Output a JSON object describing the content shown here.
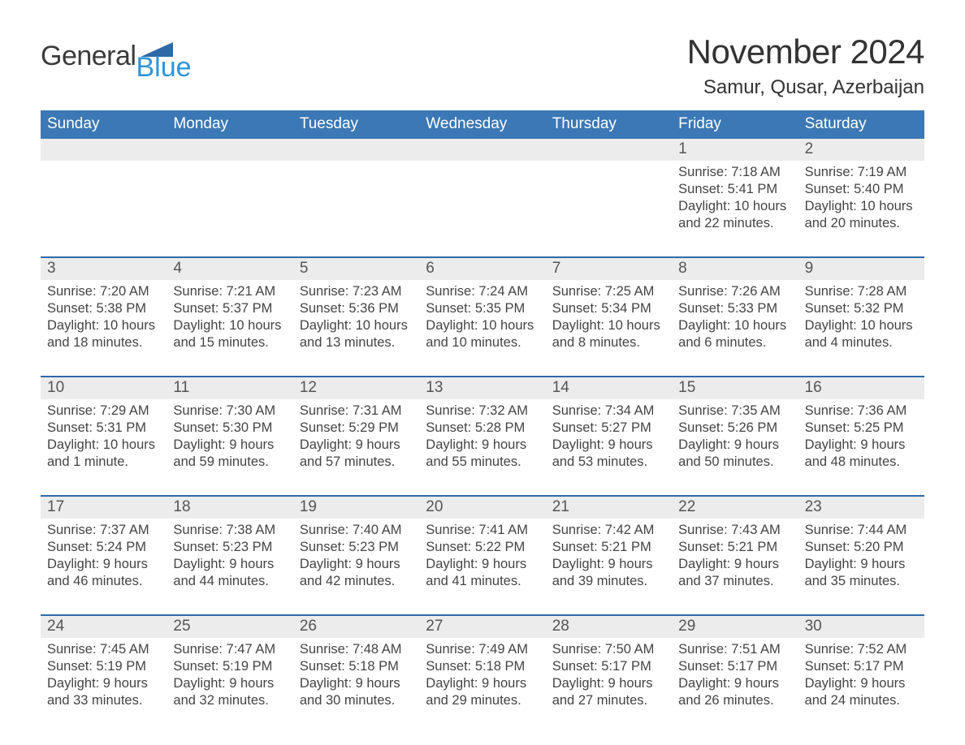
{
  "brand": {
    "word1": "General",
    "word2": "Blue"
  },
  "title": "November 2024",
  "location": "Samur, Qusar, Azerbaijan",
  "colors": {
    "header_blue": "#3b78b5",
    "accent_blue": "#2f6aa8",
    "logo_blue": "#2f94d8",
    "day_bg": "#ececec",
    "background": "#ffffff",
    "text": "#333333"
  },
  "daysOfWeek": [
    "Sunday",
    "Monday",
    "Tuesday",
    "Wednesday",
    "Thursday",
    "Friday",
    "Saturday"
  ],
  "weeks": [
    [
      {
        "num": "",
        "lines": []
      },
      {
        "num": "",
        "lines": []
      },
      {
        "num": "",
        "lines": []
      },
      {
        "num": "",
        "lines": []
      },
      {
        "num": "",
        "lines": []
      },
      {
        "num": "1",
        "lines": [
          "Sunrise: 7:18 AM",
          "Sunset: 5:41 PM",
          "Daylight: 10 hours",
          "and 22 minutes."
        ]
      },
      {
        "num": "2",
        "lines": [
          "Sunrise: 7:19 AM",
          "Sunset: 5:40 PM",
          "Daylight: 10 hours",
          "and 20 minutes."
        ]
      }
    ],
    [
      {
        "num": "3",
        "lines": [
          "Sunrise: 7:20 AM",
          "Sunset: 5:38 PM",
          "Daylight: 10 hours",
          "and 18 minutes."
        ]
      },
      {
        "num": "4",
        "lines": [
          "Sunrise: 7:21 AM",
          "Sunset: 5:37 PM",
          "Daylight: 10 hours",
          "and 15 minutes."
        ]
      },
      {
        "num": "5",
        "lines": [
          "Sunrise: 7:23 AM",
          "Sunset: 5:36 PM",
          "Daylight: 10 hours",
          "and 13 minutes."
        ]
      },
      {
        "num": "6",
        "lines": [
          "Sunrise: 7:24 AM",
          "Sunset: 5:35 PM",
          "Daylight: 10 hours",
          "and 10 minutes."
        ]
      },
      {
        "num": "7",
        "lines": [
          "Sunrise: 7:25 AM",
          "Sunset: 5:34 PM",
          "Daylight: 10 hours",
          "and 8 minutes."
        ]
      },
      {
        "num": "8",
        "lines": [
          "Sunrise: 7:26 AM",
          "Sunset: 5:33 PM",
          "Daylight: 10 hours",
          "and 6 minutes."
        ]
      },
      {
        "num": "9",
        "lines": [
          "Sunrise: 7:28 AM",
          "Sunset: 5:32 PM",
          "Daylight: 10 hours",
          "and 4 minutes."
        ]
      }
    ],
    [
      {
        "num": "10",
        "lines": [
          "Sunrise: 7:29 AM",
          "Sunset: 5:31 PM",
          "Daylight: 10 hours",
          "and 1 minute."
        ]
      },
      {
        "num": "11",
        "lines": [
          "Sunrise: 7:30 AM",
          "Sunset: 5:30 PM",
          "Daylight: 9 hours",
          "and 59 minutes."
        ]
      },
      {
        "num": "12",
        "lines": [
          "Sunrise: 7:31 AM",
          "Sunset: 5:29 PM",
          "Daylight: 9 hours",
          "and 57 minutes."
        ]
      },
      {
        "num": "13",
        "lines": [
          "Sunrise: 7:32 AM",
          "Sunset: 5:28 PM",
          "Daylight: 9 hours",
          "and 55 minutes."
        ]
      },
      {
        "num": "14",
        "lines": [
          "Sunrise: 7:34 AM",
          "Sunset: 5:27 PM",
          "Daylight: 9 hours",
          "and 53 minutes."
        ]
      },
      {
        "num": "15",
        "lines": [
          "Sunrise: 7:35 AM",
          "Sunset: 5:26 PM",
          "Daylight: 9 hours",
          "and 50 minutes."
        ]
      },
      {
        "num": "16",
        "lines": [
          "Sunrise: 7:36 AM",
          "Sunset: 5:25 PM",
          "Daylight: 9 hours",
          "and 48 minutes."
        ]
      }
    ],
    [
      {
        "num": "17",
        "lines": [
          "Sunrise: 7:37 AM",
          "Sunset: 5:24 PM",
          "Daylight: 9 hours",
          "and 46 minutes."
        ]
      },
      {
        "num": "18",
        "lines": [
          "Sunrise: 7:38 AM",
          "Sunset: 5:23 PM",
          "Daylight: 9 hours",
          "and 44 minutes."
        ]
      },
      {
        "num": "19",
        "lines": [
          "Sunrise: 7:40 AM",
          "Sunset: 5:23 PM",
          "Daylight: 9 hours",
          "and 42 minutes."
        ]
      },
      {
        "num": "20",
        "lines": [
          "Sunrise: 7:41 AM",
          "Sunset: 5:22 PM",
          "Daylight: 9 hours",
          "and 41 minutes."
        ]
      },
      {
        "num": "21",
        "lines": [
          "Sunrise: 7:42 AM",
          "Sunset: 5:21 PM",
          "Daylight: 9 hours",
          "and 39 minutes."
        ]
      },
      {
        "num": "22",
        "lines": [
          "Sunrise: 7:43 AM",
          "Sunset: 5:21 PM",
          "Daylight: 9 hours",
          "and 37 minutes."
        ]
      },
      {
        "num": "23",
        "lines": [
          "Sunrise: 7:44 AM",
          "Sunset: 5:20 PM",
          "Daylight: 9 hours",
          "and 35 minutes."
        ]
      }
    ],
    [
      {
        "num": "24",
        "lines": [
          "Sunrise: 7:45 AM",
          "Sunset: 5:19 PM",
          "Daylight: 9 hours",
          "and 33 minutes."
        ]
      },
      {
        "num": "25",
        "lines": [
          "Sunrise: 7:47 AM",
          "Sunset: 5:19 PM",
          "Daylight: 9 hours",
          "and 32 minutes."
        ]
      },
      {
        "num": "26",
        "lines": [
          "Sunrise: 7:48 AM",
          "Sunset: 5:18 PM",
          "Daylight: 9 hours",
          "and 30 minutes."
        ]
      },
      {
        "num": "27",
        "lines": [
          "Sunrise: 7:49 AM",
          "Sunset: 5:18 PM",
          "Daylight: 9 hours",
          "and 29 minutes."
        ]
      },
      {
        "num": "28",
        "lines": [
          "Sunrise: 7:50 AM",
          "Sunset: 5:17 PM",
          "Daylight: 9 hours",
          "and 27 minutes."
        ]
      },
      {
        "num": "29",
        "lines": [
          "Sunrise: 7:51 AM",
          "Sunset: 5:17 PM",
          "Daylight: 9 hours",
          "and 26 minutes."
        ]
      },
      {
        "num": "30",
        "lines": [
          "Sunrise: 7:52 AM",
          "Sunset: 5:17 PM",
          "Daylight: 9 hours",
          "and 24 minutes."
        ]
      }
    ]
  ]
}
